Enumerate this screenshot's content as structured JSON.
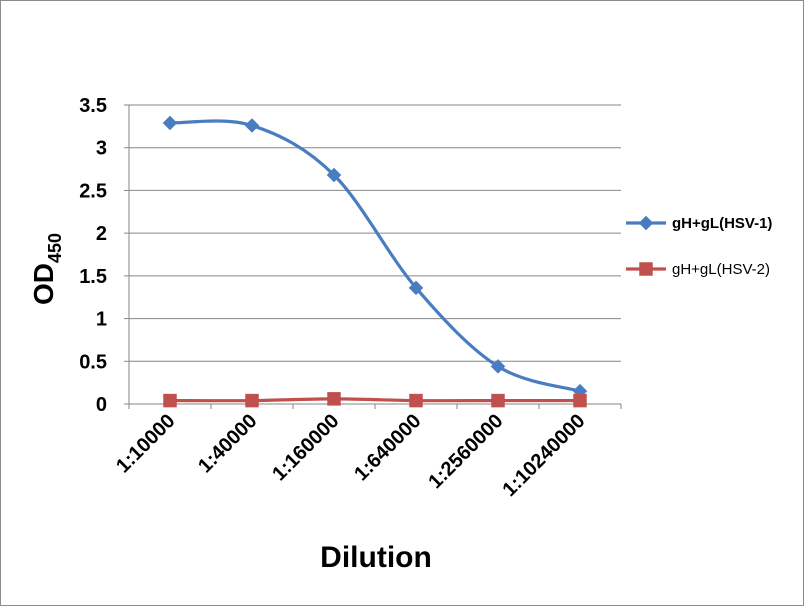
{
  "chart_data": {
    "type": "line",
    "x": [
      "1:10000",
      "1:40000",
      "1:160000",
      "1:640000",
      "1:2560000",
      "1:10240000"
    ],
    "series": [
      {
        "name": "gH+gL(HSV-1)",
        "values": [
          3.29,
          3.26,
          2.68,
          1.36,
          0.44,
          0.15
        ],
        "color": "#4a7dc0",
        "marker": "diamond",
        "smooth": true
      },
      {
        "name": "gH+gL(HSV-2)",
        "values": [
          0.04,
          0.04,
          0.06,
          0.04,
          0.04,
          0.04
        ],
        "color": "#c0504d",
        "marker": "square",
        "smooth": true
      }
    ],
    "yticks": [
      "0",
      "0.5",
      "1",
      "1.5",
      "2",
      "2.5",
      "3",
      "3.5"
    ],
    "ylim": [
      0,
      3.5
    ],
    "xlabel": "Dilution",
    "ylabel_main": "OD",
    "ylabel_sub": "450",
    "grid": true,
    "legend_position": "right"
  }
}
